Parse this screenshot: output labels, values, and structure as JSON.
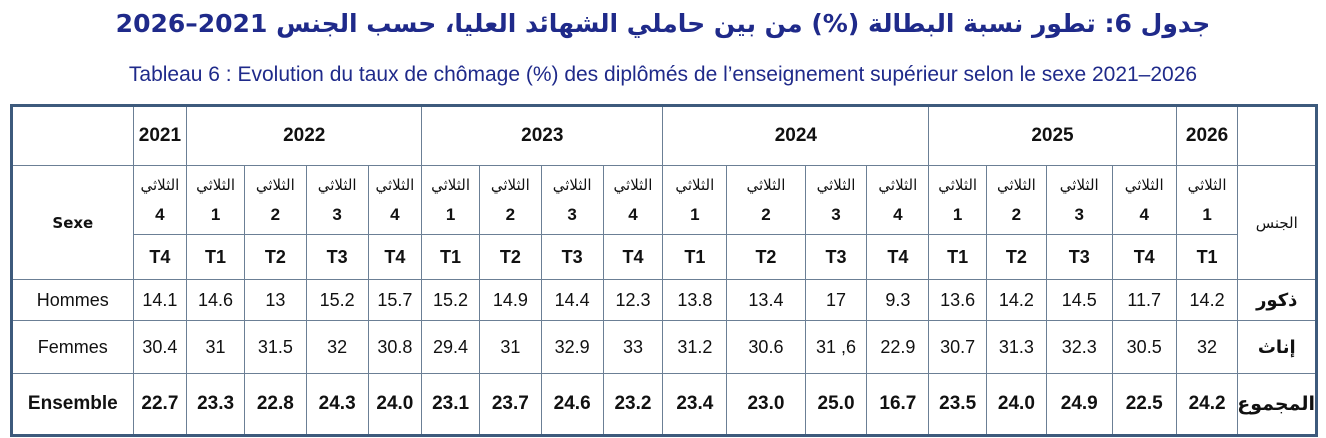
{
  "title_ar": "جدول 6: تطور نسبة البطالة (%) من بين حاملي الشهائد العليا، حسب الجنس 2021–2026",
  "title_fr": "Tableau 6 : Evolution du taux de chômage (%) des diplômés de l’enseignement supérieur selon le sexe 2021–2026",
  "header": {
    "sexe_label": "Sexe",
    "jins_label": "الجنس",
    "years": [
      {
        "label": "2021"
      },
      {
        "label": "2022"
      },
      {
        "label": "2023"
      },
      {
        "label": "2024"
      },
      {
        "label": "2025"
      },
      {
        "label": "2026"
      }
    ],
    "trimestre_ar": "الثلاثي",
    "quarters": [
      {
        "num": "4",
        "t": "T4"
      },
      {
        "num": "1",
        "t": "T1"
      },
      {
        "num": "2",
        "t": "T2"
      },
      {
        "num": "3",
        "t": "T3"
      },
      {
        "num": "4",
        "t": "T4"
      },
      {
        "num": "1",
        "t": "T1"
      },
      {
        "num": "2",
        "t": "T2"
      },
      {
        "num": "3",
        "t": "T3"
      },
      {
        "num": "4",
        "t": "T4"
      },
      {
        "num": "1",
        "t": "T1"
      },
      {
        "num": "2",
        "t": "T2"
      },
      {
        "num": "3",
        "t": "T3"
      },
      {
        "num": "4",
        "t": "T4"
      },
      {
        "num": "1",
        "t": "T1"
      },
      {
        "num": "2",
        "t": "T2"
      },
      {
        "num": "3",
        "t": "T3"
      },
      {
        "num": "4",
        "t": "T4"
      },
      {
        "num": "1",
        "t": "T1"
      }
    ]
  },
  "rows": [
    {
      "fr": "Hommes",
      "ar": "ذكور",
      "values": [
        "14.1",
        "14.6",
        "13",
        "15.2",
        "15.7",
        "15.2",
        "14.9",
        "14.4",
        "12.3",
        "13.8",
        "13.4",
        "17",
        "9.3",
        "13.6",
        "14.2",
        "14.5",
        "11.7",
        "14.2"
      ]
    },
    {
      "fr": "Femmes",
      "ar": "إناث",
      "values": [
        "30.4",
        "31",
        "31.5",
        "32",
        "30.8",
        "29.4",
        "31",
        "32.9",
        "33",
        "31.2",
        "30.6",
        "31 ,6",
        "22.9",
        "30.7",
        "31.3",
        "32.3",
        "30.5",
        "32"
      ]
    },
    {
      "fr": "Ensemble",
      "ar": "المجموع",
      "values": [
        "22.7",
        "23.3",
        "22.8",
        "24.3",
        "24.0",
        "23.1",
        "23.7",
        "24.6",
        "23.2",
        "23.4",
        "23.0",
        "25.0",
        "16.7",
        "23.5",
        "24.0",
        "24.9",
        "22.5",
        "24.2"
      ]
    }
  ]
}
